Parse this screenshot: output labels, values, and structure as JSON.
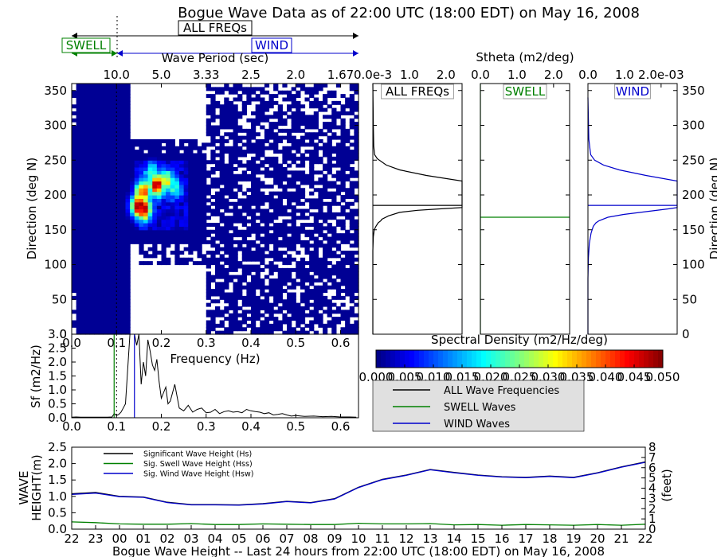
{
  "title": "Bogue Wave Data as of 22:00 UTC (18:00 EDT) on May 16, 2008",
  "band_labels": {
    "all": "ALL FREQs",
    "swell": "SWELL",
    "wind": "WIND"
  },
  "colors": {
    "all": "#000000",
    "swell": "#008000",
    "wind": "#0000cc",
    "legend_bg": "#e0e0e0"
  },
  "chart_data": [
    {
      "id": "directional-spectrum",
      "type": "heatmap",
      "top_axis_label": "Wave Period (sec)",
      "top_ticks": [
        "10.0",
        "5.0",
        "3.33",
        "2.5",
        "2.0",
        "1.67"
      ],
      "top_tick_freqs": [
        0.1,
        0.2,
        0.3,
        0.4,
        0.5,
        0.6
      ],
      "ylabel": "Direction (deg N)",
      "xlim": [
        0.0,
        0.64
      ],
      "ylim": [
        0,
        360
      ],
      "yticks": [
        0,
        50,
        100,
        150,
        200,
        250,
        300,
        350
      ],
      "xticks": [
        "0.0",
        "0.1",
        "0.2",
        "0.3",
        "0.4",
        "0.5",
        "0.6"
      ],
      "xlabel": "Frequency (Hz)",
      "swell_separation_freq": 0.1,
      "wind_separation_freq": 0.14,
      "hot_spots": [
        {
          "f": 0.15,
          "dir": 185,
          "v": 0.05
        },
        {
          "f": 0.16,
          "dir": 180,
          "v": 0.046
        },
        {
          "f": 0.16,
          "dir": 205,
          "v": 0.04
        },
        {
          "f": 0.19,
          "dir": 215,
          "v": 0.045
        },
        {
          "f": 0.21,
          "dir": 220,
          "v": 0.03
        },
        {
          "f": 0.18,
          "dir": 230,
          "v": 0.02
        },
        {
          "f": 0.23,
          "dir": 210,
          "v": 0.018
        }
      ]
    },
    {
      "id": "theta-all",
      "type": "line",
      "title": "ALL FREQs",
      "xlabel": "",
      "top_ticks": [
        "0.0e-3",
        "1.0",
        "2.0"
      ],
      "xlim": [
        0,
        2.0
      ],
      "ylim": [
        0,
        360
      ],
      "mean_direction": 185,
      "series": [
        {
          "name": "ALL",
          "x": [
            0.0,
            0.0,
            0.01,
            0.03,
            0.07,
            0.12,
            0.18,
            0.2,
            0.35,
            0.6,
            1.0,
            1.5,
            2.0,
            2.0,
            2.0,
            1.2,
            0.6,
            0.3,
            0.1,
            0.04,
            0.02,
            0.01,
            0.0
          ],
          "y": [
            0,
            120,
            140,
            150,
            155,
            160,
            163,
            165,
            170,
            175,
            178,
            180,
            182,
            185,
            220,
            228,
            236,
            243,
            252,
            258,
            270,
            300,
            360
          ]
        }
      ]
    },
    {
      "id": "theta-swell",
      "type": "line",
      "title": "SWELL",
      "top_ticks": [
        "0.0",
        "1.0",
        "2.0"
      ],
      "xlim": [
        0,
        2.0
      ],
      "ylim": [
        0,
        360
      ],
      "mean_direction": 168,
      "series": [
        {
          "name": "SWELL",
          "x": [
            0.0,
            0.0
          ],
          "y": [
            0,
            360
          ]
        }
      ]
    },
    {
      "id": "theta-wind",
      "type": "line",
      "title": "WIND",
      "xlabel": "Stheta (m2/deg)",
      "top_ticks": [
        "0.0",
        "1.0",
        "2.0e-03"
      ],
      "xlim": [
        0,
        2.0
      ],
      "ylim": [
        0,
        360
      ],
      "yticks_right": [
        0,
        50,
        100,
        150,
        200,
        250,
        300,
        350
      ],
      "ylabel_right": "Direction (deg N)",
      "mean_direction": 185,
      "series": [
        {
          "name": "WIND",
          "x": [
            0.0,
            0.0,
            0.01,
            0.03,
            0.07,
            0.12,
            0.18,
            0.25,
            0.45,
            0.8,
            1.3,
            1.8,
            2.0,
            2.0,
            1.3,
            0.7,
            0.35,
            0.15,
            0.06,
            0.02,
            0.0
          ],
          "y": [
            0,
            80,
            110,
            130,
            145,
            155,
            160,
            163,
            168,
            172,
            176,
            180,
            182,
            220,
            228,
            236,
            243,
            250,
            258,
            280,
            340
          ]
        }
      ]
    },
    {
      "id": "frequency-spectrum",
      "type": "line",
      "xlabel": "",
      "ylabel": "Sf (m2/Hz)",
      "xlim": [
        0.0,
        0.64
      ],
      "ylim": [
        0.0,
        3.0
      ],
      "yticks": [
        "0.0",
        "0.5",
        "1.0",
        "1.5",
        "2.0",
        "2.5",
        "3.0"
      ],
      "xticks": [
        "0.0",
        "0.1",
        "0.2",
        "0.3",
        "0.4",
        "0.5",
        "0.6"
      ],
      "swell_separation_freq": 0.1,
      "wind_separation_freq": 0.14,
      "series": [
        {
          "name": "ALL",
          "x": [
            0.0,
            0.01,
            0.02,
            0.03,
            0.04,
            0.05,
            0.06,
            0.07,
            0.08,
            0.09,
            0.095,
            0.1,
            0.105,
            0.11,
            0.115,
            0.12,
            0.13,
            0.14,
            0.145,
            0.15,
            0.155,
            0.16,
            0.165,
            0.17,
            0.175,
            0.18,
            0.185,
            0.19,
            0.195,
            0.2,
            0.205,
            0.21,
            0.215,
            0.22,
            0.23,
            0.24,
            0.25,
            0.26,
            0.27,
            0.28,
            0.29,
            0.3,
            0.31,
            0.32,
            0.33,
            0.34,
            0.35,
            0.36,
            0.37,
            0.38,
            0.39,
            0.4,
            0.41,
            0.42,
            0.43,
            0.44,
            0.45,
            0.46,
            0.47,
            0.48,
            0.49,
            0.5,
            0.52,
            0.54,
            0.56,
            0.58,
            0.6,
            0.62,
            0.635
          ],
          "y": [
            0.02,
            0.03,
            0.02,
            0.02,
            0.02,
            0.02,
            0.02,
            0.02,
            0.02,
            0.03,
            0.15,
            0.08,
            0.12,
            0.2,
            0.35,
            0.5,
            3.0,
            3.0,
            2.6,
            3.0,
            1.2,
            2.0,
            1.5,
            2.8,
            2.4,
            1.9,
            1.7,
            2.1,
            1.3,
            0.7,
            0.9,
            1.1,
            0.5,
            0.6,
            1.2,
            0.35,
            0.25,
            0.45,
            0.2,
            0.3,
            0.35,
            0.18,
            0.2,
            0.3,
            0.15,
            0.22,
            0.25,
            0.2,
            0.22,
            0.18,
            0.3,
            0.25,
            0.22,
            0.2,
            0.15,
            0.18,
            0.1,
            0.12,
            0.15,
            0.1,
            0.06,
            0.08,
            0.05,
            0.06,
            0.04,
            0.05,
            0.03,
            0.03,
            0.02
          ]
        }
      ]
    },
    {
      "id": "wave-height-24h",
      "type": "line",
      "xlabel": "Bogue Wave Height -- Last 24 hours from 22:00 UTC (18:00 EDT) on May 16, 2008",
      "ylabel": "WAVE HEIGHT(m)",
      "ylabel_right": "(feet)",
      "categories": [
        "22",
        "23",
        "00",
        "01",
        "02",
        "03",
        "04",
        "05",
        "06",
        "07",
        "08",
        "09",
        "10",
        "11",
        "12",
        "13",
        "14",
        "15",
        "16",
        "17",
        "18",
        "19",
        "20",
        "21",
        "22"
      ],
      "ylim": [
        0.0,
        2.5
      ],
      "yticks": [
        "0.0",
        "0.5",
        "1.0",
        "1.5",
        "2.0",
        "2.5"
      ],
      "ylim_right": [
        0,
        8
      ],
      "yticks_right": [
        "0",
        "1",
        "2",
        "3",
        "4",
        "5",
        "6",
        "7",
        "8"
      ],
      "legend": [
        "Significant Wave Height (Hs)",
        "Sig. Swell Wave Height (Hss)",
        "Sig. Wind Wave Height (Hsw)"
      ],
      "series": [
        {
          "name": "Significant Wave Height (Hs)",
          "values": [
            1.08,
            1.12,
            1.0,
            0.98,
            0.82,
            0.75,
            0.75,
            0.74,
            0.78,
            0.85,
            0.81,
            0.93,
            1.28,
            1.52,
            1.65,
            1.82,
            1.73,
            1.65,
            1.6,
            1.58,
            1.62,
            1.58,
            1.72,
            1.9,
            2.05
          ]
        },
        {
          "name": "Sig. Swell Wave Height (Hss)",
          "values": [
            0.22,
            0.2,
            0.16,
            0.15,
            0.15,
            0.17,
            0.14,
            0.14,
            0.16,
            0.15,
            0.14,
            0.14,
            0.18,
            0.16,
            0.16,
            0.17,
            0.13,
            0.14,
            0.12,
            0.14,
            0.13,
            0.12,
            0.14,
            0.12,
            0.15
          ]
        },
        {
          "name": "Sig. Wind Wave Height (Hsw)",
          "values": [
            1.06,
            1.1,
            0.99,
            0.97,
            0.81,
            0.74,
            0.74,
            0.73,
            0.77,
            0.84,
            0.8,
            0.92,
            1.27,
            1.51,
            1.64,
            1.81,
            1.72,
            1.64,
            1.59,
            1.57,
            1.61,
            1.57,
            1.71,
            1.89,
            2.04
          ]
        }
      ]
    }
  ],
  "colorbar": {
    "label": "Spectral Density (m2/Hz/deg)",
    "ticks": [
      "0.000",
      "0.005",
      "0.010",
      "0.015",
      "0.020",
      "0.025",
      "0.030",
      "0.035",
      "0.040",
      "0.045",
      "0.050"
    ],
    "range": [
      0.0,
      0.05
    ],
    "colormap": "jet"
  },
  "legend_main": [
    {
      "label": "ALL Wave Frequencies",
      "color": "#000000"
    },
    {
      "label": "SWELL Waves",
      "color": "#008000"
    },
    {
      "label": "WIND Waves",
      "color": "#0000cc"
    }
  ]
}
